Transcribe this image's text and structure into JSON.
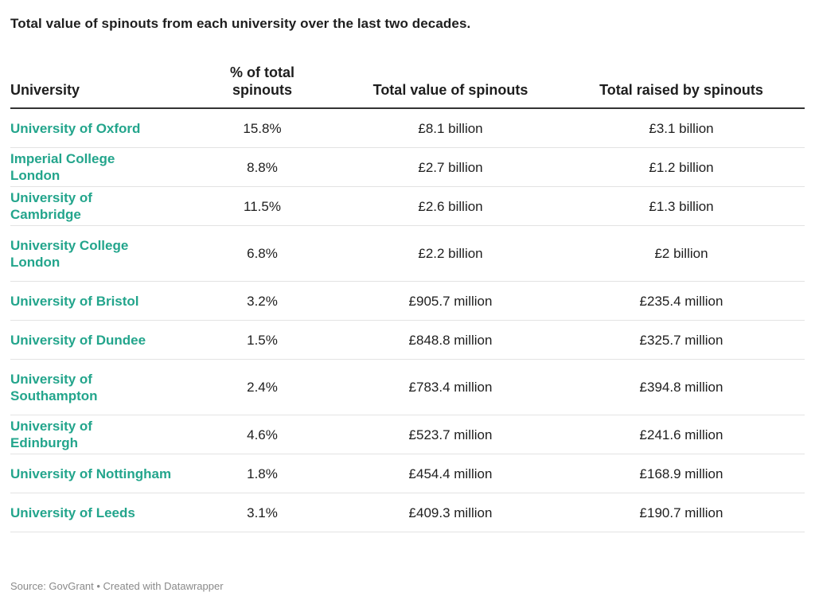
{
  "title": "Total value of spinouts from each university over the last two decades.",
  "columns": [
    "University",
    "% of total spinouts",
    "Total value of spinouts",
    "Total raised by spinouts"
  ],
  "rows": [
    {
      "university": "University of Oxford",
      "pct": "15.8%",
      "value": "£8.1 billion",
      "raised": "£3.1 billion"
    },
    {
      "university": "Imperial College London",
      "pct": "8.8%",
      "value": "£2.7 billion",
      "raised": "£1.2 billion"
    },
    {
      "university": "University of Cambridge",
      "pct": "11.5%",
      "value": "£2.6 billion",
      "raised": "£1.3 billion"
    },
    {
      "university": "University College London",
      "pct": "6.8%",
      "value": "£2.2 billion",
      "raised": "£2 billion"
    },
    {
      "university": "University of Bristol",
      "pct": "3.2%",
      "value": "£905.7 million",
      "raised": "£235.4 million"
    },
    {
      "university": "University of Dundee",
      "pct": "1.5%",
      "value": "£848.8 million",
      "raised": "£325.7 million"
    },
    {
      "university": "University of Southampton",
      "pct": "2.4%",
      "value": "£783.4 million",
      "raised": "£394.8 million"
    },
    {
      "university": "University of Edinburgh",
      "pct": "4.6%",
      "value": "£523.7 million",
      "raised": "£241.6 million"
    },
    {
      "university": "University of Nottingham",
      "pct": "1.8%",
      "value": "£454.4 million",
      "raised": "£168.9 million"
    },
    {
      "university": "University of Leeds",
      "pct": "3.1%",
      "value": "£409.3 million",
      "raised": "£190.7 million"
    }
  ],
  "source": "Source: GovGrant • Created with Datawrapper",
  "colors": {
    "university_name": "#23a58c",
    "header_rule": "#333333",
    "row_rule": "#e3e3e3",
    "source_text": "#8a8a8a"
  },
  "chart_data": {
    "type": "table",
    "title": "Total value of spinouts from each university over the last two decades.",
    "columns": [
      "University",
      "% of total spinouts",
      "Total value of spinouts",
      "Total raised by spinouts"
    ],
    "rows": [
      [
        "University of Oxford",
        "15.8%",
        "£8.1 billion",
        "£3.1 billion"
      ],
      [
        "Imperial College London",
        "8.8%",
        "£2.7 billion",
        "£1.2 billion"
      ],
      [
        "University of Cambridge",
        "11.5%",
        "£2.6 billion",
        "£1.3 billion"
      ],
      [
        "University College London",
        "6.8%",
        "£2.2 billion",
        "£2 billion"
      ],
      [
        "University of Bristol",
        "3.2%",
        "£905.7 million",
        "£235.4 million"
      ],
      [
        "University of Dundee",
        "1.5%",
        "£848.8 million",
        "£325.7 million"
      ],
      [
        "University of Southampton",
        "2.4%",
        "£783.4 million",
        "£394.8 million"
      ],
      [
        "University of Edinburgh",
        "4.6%",
        "£523.7 million",
        "£241.6 million"
      ],
      [
        "University of Nottingham",
        "1.8%",
        "£454.4 million",
        "£168.9 million"
      ],
      [
        "University of Leeds",
        "3.1%",
        "£409.3 million",
        "£190.7 million"
      ]
    ],
    "source": "Source: GovGrant • Created with Datawrapper"
  }
}
